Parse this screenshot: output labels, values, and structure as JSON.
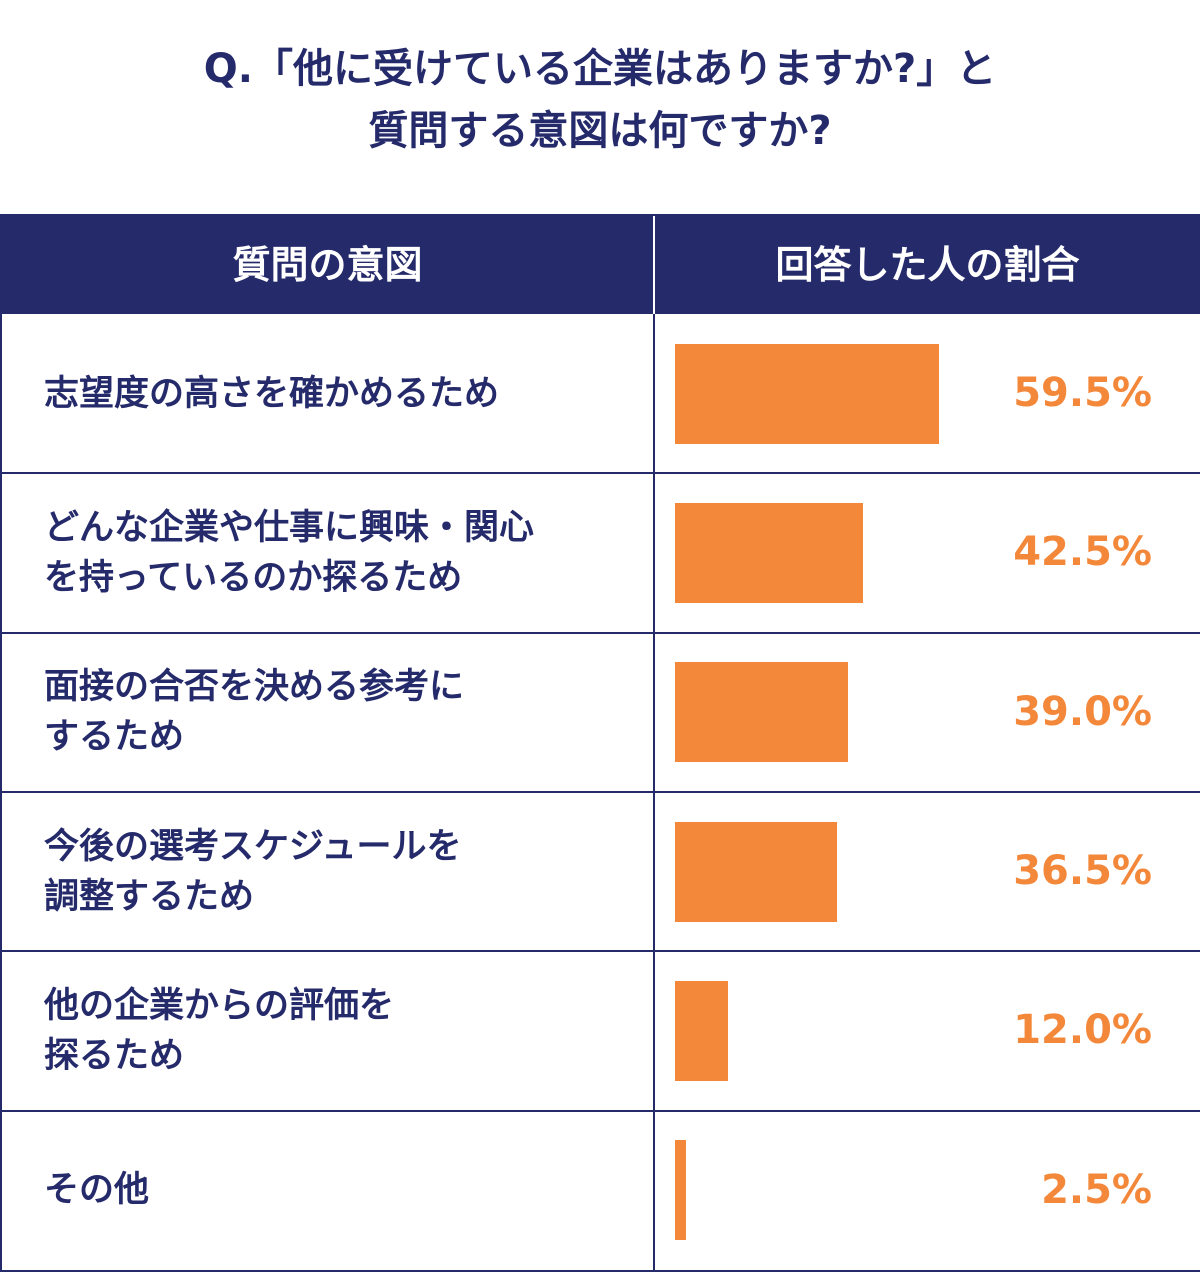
{
  "title": {
    "line1": "Q.「他に受けている企業はありますか?」と",
    "line2": "質問する意図は何ですか?"
  },
  "table": {
    "header_left": "質問の意図",
    "header_right": "回答した人の割合"
  },
  "colors": {
    "navy": "#252a6b",
    "bar": "#f3873a"
  },
  "chart_data": {
    "type": "bar",
    "orientation": "horizontal",
    "title": "Q.「他に受けている企業はありますか?」と 質問する意図は何ですか?",
    "categories": [
      "志望度の高さを確かめるため",
      "どんな企業や仕事に興味・関心を持っているのか探るため",
      "面接の合否を決める参考にするため",
      "今後の選考スケジュールを調整するため",
      "他の企業からの評価を探るため",
      "その他"
    ],
    "values": [
      59.5,
      42.5,
      39.0,
      36.5,
      12.0,
      2.5
    ],
    "value_labels": [
      "59.5%",
      "42.5%",
      "39.0%",
      "36.5%",
      "12.0%",
      "2.5%"
    ],
    "unit": "%",
    "xlim": [
      0,
      100
    ],
    "grid": false,
    "legend": "none"
  },
  "rows": [
    {
      "label_lines": [
        "志望度の高さを確かめるため"
      ]
    },
    {
      "label_lines": [
        "どんな企業や仕事に興味・関心",
        "を持っているのか探るため"
      ]
    },
    {
      "label_lines": [
        "面接の合否を決める参考に",
        "するため"
      ]
    },
    {
      "label_lines": [
        "今後の選考スケジュールを",
        "調整するため"
      ]
    },
    {
      "label_lines": [
        "他の企業からの評価を",
        "探るため"
      ]
    },
    {
      "label_lines": [
        "その他"
      ]
    }
  ]
}
